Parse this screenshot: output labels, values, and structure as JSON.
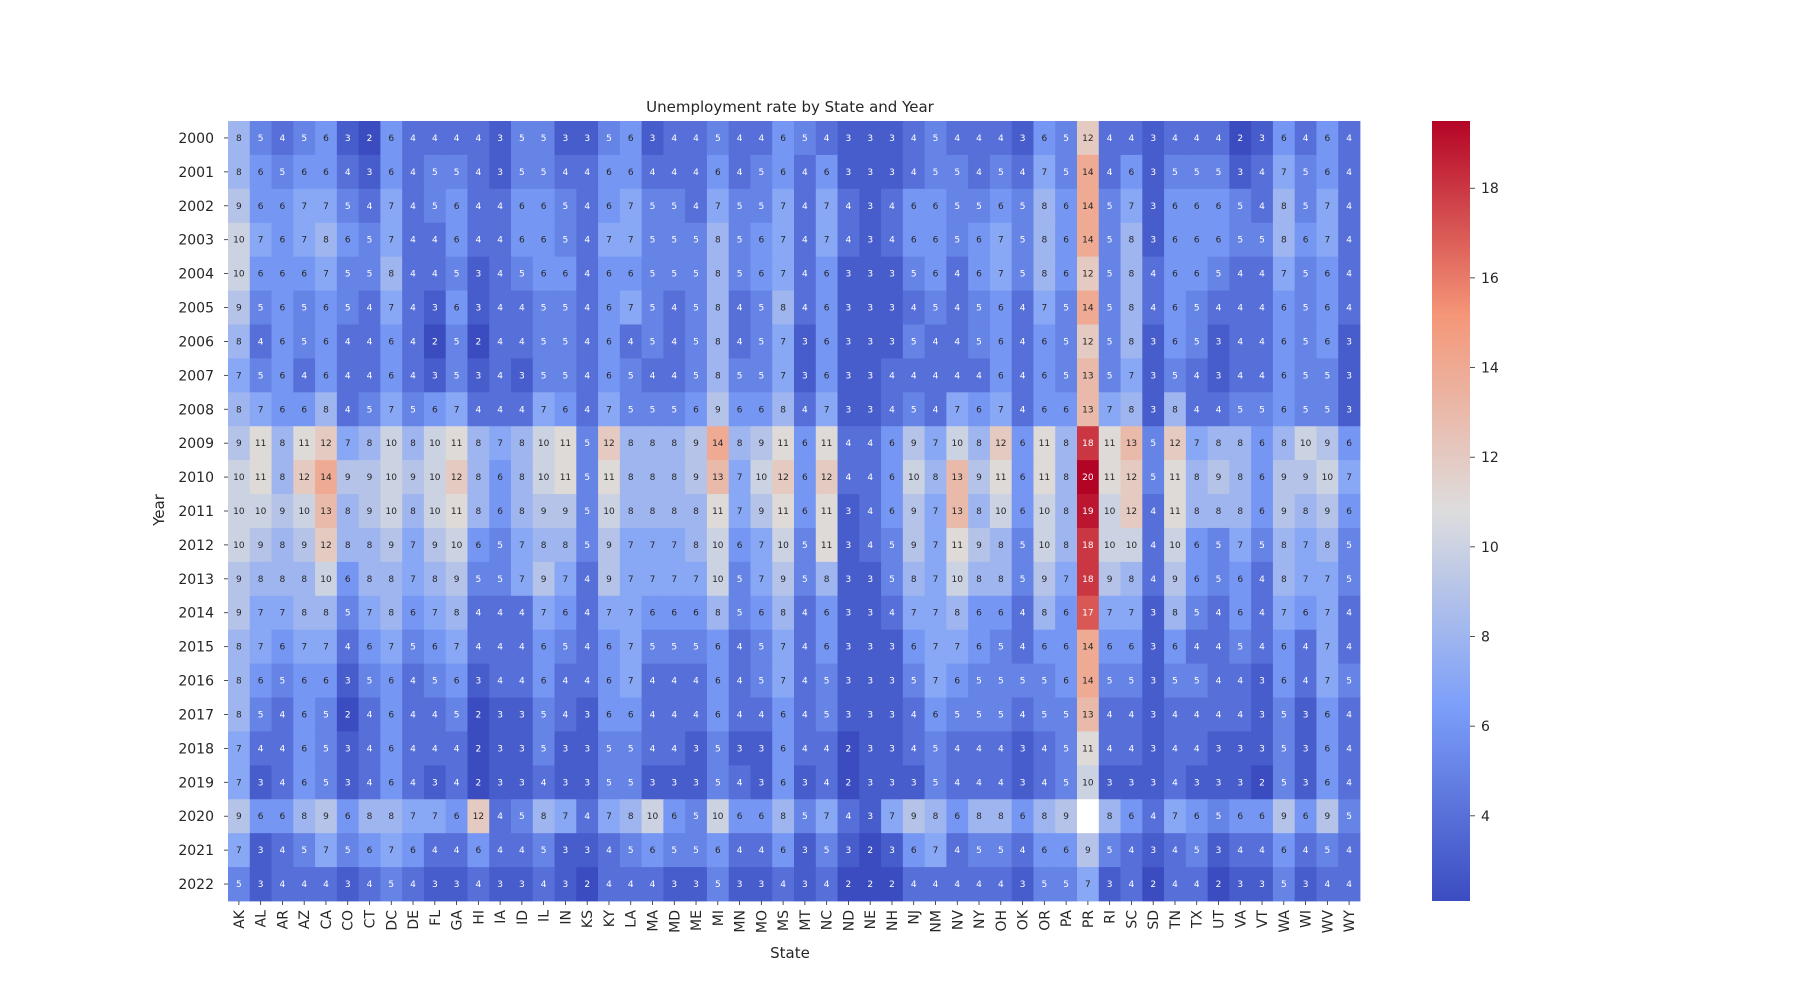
{
  "chart_data": {
    "type": "heatmap",
    "title": "Unemployment rate by State and Year",
    "xlabel": "State",
    "ylabel": "Year",
    "colormap": "coolwarm",
    "vmin": 2.1,
    "vmax": 19.5,
    "colorbar_ticks": [
      4,
      6,
      8,
      10,
      12,
      14,
      16,
      18
    ],
    "x_categories": [
      "AK",
      "AL",
      "AR",
      "AZ",
      "CA",
      "CO",
      "CT",
      "DC",
      "DE",
      "FL",
      "GA",
      "HI",
      "IA",
      "ID",
      "IL",
      "IN",
      "KS",
      "KY",
      "LA",
      "MA",
      "MD",
      "ME",
      "MI",
      "MN",
      "MO",
      "MS",
      "MT",
      "NC",
      "ND",
      "NE",
      "NH",
      "NJ",
      "NM",
      "NV",
      "NY",
      "OH",
      "OK",
      "OR",
      "PA",
      "PR",
      "RI",
      "SC",
      "SD",
      "TN",
      "TX",
      "UT",
      "VA",
      "VT",
      "WA",
      "WI",
      "WV",
      "WY"
    ],
    "y_categories": [
      "2000",
      "2001",
      "2002",
      "2003",
      "2004",
      "2005",
      "2006",
      "2007",
      "2008",
      "2009",
      "2010",
      "2011",
      "2012",
      "2013",
      "2014",
      "2015",
      "2016",
      "2017",
      "2018",
      "2019",
      "2020",
      "2021",
      "2022"
    ],
    "values": [
      [
        8,
        5,
        4,
        5,
        6,
        3,
        2,
        6,
        4,
        4,
        4,
        4,
        3,
        5,
        5,
        3,
        3,
        5,
        6,
        3,
        4,
        4,
        5,
        4,
        4,
        6,
        5,
        4,
        3,
        3,
        3,
        4,
        5,
        4,
        4,
        4,
        3,
        6,
        5,
        12,
        4,
        4,
        3,
        4,
        4,
        4,
        2,
        3,
        6,
        4,
        6,
        4
      ],
      [
        8,
        6,
        5,
        6,
        6,
        4,
        3,
        6,
        4,
        5,
        5,
        4,
        3,
        5,
        5,
        4,
        4,
        6,
        6,
        4,
        4,
        4,
        6,
        4,
        5,
        6,
        4,
        6,
        3,
        3,
        3,
        4,
        5,
        5,
        4,
        5,
        4,
        7,
        5,
        14,
        4,
        6,
        3,
        5,
        5,
        5,
        3,
        4,
        7,
        5,
        6,
        4
      ],
      [
        9,
        6,
        6,
        7,
        7,
        5,
        4,
        7,
        4,
        5,
        6,
        4,
        4,
        6,
        6,
        5,
        4,
        6,
        7,
        5,
        5,
        4,
        7,
        5,
        5,
        7,
        4,
        7,
        4,
        3,
        4,
        6,
        6,
        5,
        5,
        6,
        5,
        8,
        6,
        14,
        5,
        7,
        3,
        6,
        6,
        6,
        5,
        4,
        8,
        5,
        7,
        4
      ],
      [
        10,
        7,
        6,
        7,
        8,
        6,
        5,
        7,
        4,
        4,
        6,
        4,
        4,
        6,
        6,
        5,
        4,
        7,
        7,
        5,
        5,
        5,
        8,
        5,
        6,
        7,
        4,
        7,
        4,
        3,
        4,
        6,
        6,
        5,
        6,
        7,
        5,
        8,
        6,
        14,
        5,
        8,
        3,
        6,
        6,
        6,
        5,
        5,
        8,
        6,
        7,
        4
      ],
      [
        10,
        6,
        6,
        6,
        7,
        5,
        5,
        8,
        4,
        4,
        5,
        3,
        4,
        5,
        6,
        6,
        4,
        6,
        6,
        5,
        5,
        5,
        8,
        5,
        6,
        7,
        4,
        6,
        3,
        3,
        3,
        5,
        6,
        4,
        6,
        7,
        5,
        8,
        6,
        12,
        5,
        8,
        4,
        6,
        6,
        5,
        4,
        4,
        7,
        5,
        6,
        4
      ],
      [
        9,
        5,
        6,
        5,
        6,
        5,
        4,
        7,
        4,
        3,
        6,
        3,
        4,
        4,
        5,
        5,
        4,
        6,
        7,
        5,
        4,
        5,
        8,
        4,
        5,
        8,
        4,
        6,
        3,
        3,
        3,
        4,
        5,
        4,
        5,
        6,
        4,
        7,
        5,
        14,
        5,
        8,
        4,
        6,
        5,
        4,
        4,
        4,
        6,
        5,
        6,
        4
      ],
      [
        8,
        4,
        6,
        5,
        6,
        4,
        4,
        6,
        4,
        2,
        5,
        2,
        4,
        4,
        5,
        5,
        4,
        6,
        4,
        5,
        4,
        5,
        8,
        4,
        5,
        7,
        3,
        6,
        3,
        3,
        3,
        5,
        4,
        4,
        5,
        6,
        4,
        6,
        5,
        12,
        5,
        8,
        3,
        6,
        5,
        3,
        4,
        4,
        6,
        5,
        6,
        3
      ],
      [
        7,
        5,
        6,
        4,
        6,
        4,
        4,
        6,
        4,
        3,
        5,
        3,
        4,
        3,
        5,
        5,
        4,
        6,
        5,
        4,
        4,
        5,
        8,
        5,
        5,
        7,
        3,
        6,
        3,
        3,
        4,
        4,
        4,
        4,
        4,
        6,
        4,
        6,
        5,
        13,
        5,
        7,
        3,
        5,
        4,
        3,
        4,
        4,
        6,
        5,
        5,
        3
      ],
      [
        8,
        7,
        6,
        6,
        8,
        4,
        5,
        7,
        5,
        6,
        7,
        4,
        4,
        4,
        7,
        6,
        4,
        7,
        5,
        5,
        5,
        6,
        9,
        6,
        6,
        8,
        4,
        7,
        3,
        3,
        4,
        5,
        4,
        7,
        6,
        7,
        4,
        6,
        6,
        13,
        7,
        8,
        3,
        8,
        4,
        4,
        5,
        5,
        6,
        5,
        5,
        3
      ],
      [
        9,
        11,
        8,
        11,
        12,
        7,
        8,
        10,
        8,
        10,
        11,
        8,
        7,
        8,
        10,
        11,
        5,
        12,
        8,
        8,
        8,
        9,
        14,
        8,
        9,
        11,
        6,
        11,
        4,
        4,
        6,
        9,
        7,
        10,
        8,
        12,
        6,
        11,
        8,
        18,
        11,
        13,
        5,
        12,
        7,
        8,
        8,
        6,
        8,
        10,
        9,
        6
      ],
      [
        10,
        11,
        8,
        12,
        14,
        9,
        9,
        10,
        9,
        10,
        12,
        8,
        6,
        8,
        10,
        11,
        5,
        11,
        8,
        8,
        8,
        9,
        13,
        7,
        10,
        12,
        6,
        12,
        4,
        4,
        6,
        10,
        8,
        13,
        9,
        11,
        6,
        11,
        8,
        20,
        11,
        12,
        5,
        11,
        8,
        9,
        8,
        6,
        9,
        9,
        10,
        7
      ],
      [
        10,
        10,
        9,
        10,
        13,
        8,
        9,
        10,
        8,
        10,
        11,
        8,
        6,
        8,
        9,
        9,
        5,
        10,
        8,
        8,
        8,
        8,
        11,
        7,
        9,
        11,
        6,
        11,
        3,
        4,
        6,
        9,
        7,
        13,
        8,
        10,
        6,
        10,
        8,
        19,
        10,
        12,
        4,
        11,
        8,
        8,
        8,
        6,
        9,
        8,
        9,
        6
      ],
      [
        10,
        9,
        8,
        9,
        12,
        8,
        8,
        9,
        7,
        9,
        10,
        6,
        5,
        7,
        8,
        8,
        5,
        9,
        7,
        7,
        7,
        8,
        10,
        6,
        7,
        10,
        5,
        11,
        3,
        4,
        5,
        9,
        7,
        11,
        9,
        8,
        5,
        10,
        8,
        18,
        10,
        10,
        4,
        10,
        6,
        5,
        7,
        5,
        8,
        7,
        8,
        5
      ],
      [
        9,
        8,
        8,
        8,
        10,
        6,
        8,
        8,
        7,
        8,
        9,
        5,
        5,
        7,
        9,
        7,
        4,
        9,
        7,
        7,
        7,
        7,
        10,
        5,
        7,
        9,
        5,
        8,
        3,
        3,
        5,
        8,
        7,
        10,
        8,
        8,
        5,
        9,
        7,
        18,
        9,
        8,
        4,
        9,
        6,
        5,
        6,
        4,
        8,
        7,
        7,
        5
      ],
      [
        9,
        7,
        7,
        8,
        8,
        5,
        7,
        8,
        6,
        7,
        8,
        4,
        4,
        4,
        7,
        6,
        4,
        7,
        7,
        6,
        6,
        6,
        8,
        5,
        6,
        8,
        4,
        6,
        3,
        3,
        4,
        7,
        7,
        8,
        6,
        6,
        4,
        8,
        6,
        17,
        7,
        7,
        3,
        8,
        5,
        4,
        6,
        4,
        7,
        6,
        7,
        4
      ],
      [
        8,
        7,
        6,
        7,
        7,
        4,
        6,
        7,
        5,
        6,
        7,
        4,
        4,
        4,
        6,
        5,
        4,
        6,
        7,
        5,
        5,
        5,
        6,
        4,
        5,
        7,
        4,
        6,
        3,
        3,
        3,
        6,
        7,
        7,
        6,
        5,
        4,
        6,
        6,
        14,
        6,
        6,
        3,
        6,
        4,
        4,
        5,
        4,
        6,
        4,
        7,
        4
      ],
      [
        8,
        6,
        5,
        6,
        6,
        3,
        5,
        6,
        4,
        5,
        6,
        3,
        4,
        4,
        6,
        4,
        4,
        6,
        7,
        4,
        4,
        4,
        6,
        4,
        5,
        7,
        4,
        5,
        3,
        3,
        3,
        5,
        7,
        6,
        5,
        5,
        5,
        5,
        6,
        14,
        5,
        5,
        3,
        5,
        5,
        4,
        4,
        3,
        6,
        4,
        7,
        5
      ],
      [
        8,
        5,
        4,
        6,
        5,
        2,
        4,
        6,
        4,
        4,
        5,
        2,
        3,
        3,
        5,
        4,
        3,
        6,
        6,
        4,
        4,
        4,
        6,
        4,
        4,
        6,
        4,
        5,
        3,
        3,
        3,
        4,
        6,
        5,
        5,
        5,
        4,
        5,
        5,
        13,
        4,
        4,
        3,
        4,
        4,
        4,
        4,
        3,
        5,
        3,
        6,
        4
      ],
      [
        7,
        4,
        4,
        6,
        5,
        3,
        4,
        6,
        4,
        4,
        4,
        2,
        3,
        3,
        5,
        3,
        3,
        5,
        5,
        4,
        4,
        3,
        5,
        3,
        3,
        6,
        4,
        4,
        2,
        3,
        3,
        4,
        5,
        4,
        4,
        4,
        3,
        4,
        5,
        11,
        4,
        4,
        3,
        4,
        4,
        3,
        3,
        3,
        5,
        3,
        6,
        4
      ],
      [
        7,
        3,
        4,
        6,
        5,
        3,
        4,
        6,
        4,
        3,
        4,
        2,
        3,
        3,
        4,
        3,
        3,
        5,
        5,
        3,
        3,
        3,
        5,
        4,
        3,
        6,
        3,
        4,
        2,
        3,
        3,
        3,
        5,
        4,
        4,
        4,
        3,
        4,
        5,
        10,
        3,
        3,
        3,
        4,
        3,
        3,
        3,
        2,
        5,
        3,
        6,
        4
      ],
      [
        9,
        6,
        6,
        8,
        9,
        6,
        8,
        8,
        7,
        7,
        6,
        12,
        4,
        5,
        8,
        7,
        4,
        7,
        8,
        10,
        6,
        5,
        10,
        6,
        6,
        8,
        5,
        7,
        4,
        3,
        7,
        9,
        8,
        6,
        8,
        8,
        6,
        8,
        9,
        null,
        8,
        6,
        4,
        7,
        6,
        5,
        6,
        6,
        9,
        6,
        9,
        5
      ],
      [
        7,
        3,
        4,
        5,
        7,
        5,
        6,
        7,
        6,
        4,
        4,
        6,
        4,
        4,
        5,
        3,
        3,
        4,
        5,
        6,
        5,
        5,
        6,
        4,
        4,
        6,
        3,
        5,
        3,
        2,
        3,
        6,
        7,
        4,
        5,
        5,
        4,
        6,
        6,
        9,
        5,
        4,
        3,
        4,
        5,
        3,
        4,
        4,
        6,
        4,
        5,
        4
      ],
      [
        5,
        3,
        4,
        4,
        4,
        3,
        4,
        5,
        4,
        3,
        3,
        4,
        3,
        3,
        4,
        3,
        2,
        4,
        4,
        4,
        3,
        3,
        5,
        3,
        3,
        4,
        3,
        4,
        2,
        2,
        2,
        4,
        4,
        4,
        4,
        4,
        3,
        5,
        5,
        7,
        3,
        4,
        2,
        4,
        4,
        2,
        3,
        3,
        5,
        3,
        4,
        4
      ]
    ]
  }
}
